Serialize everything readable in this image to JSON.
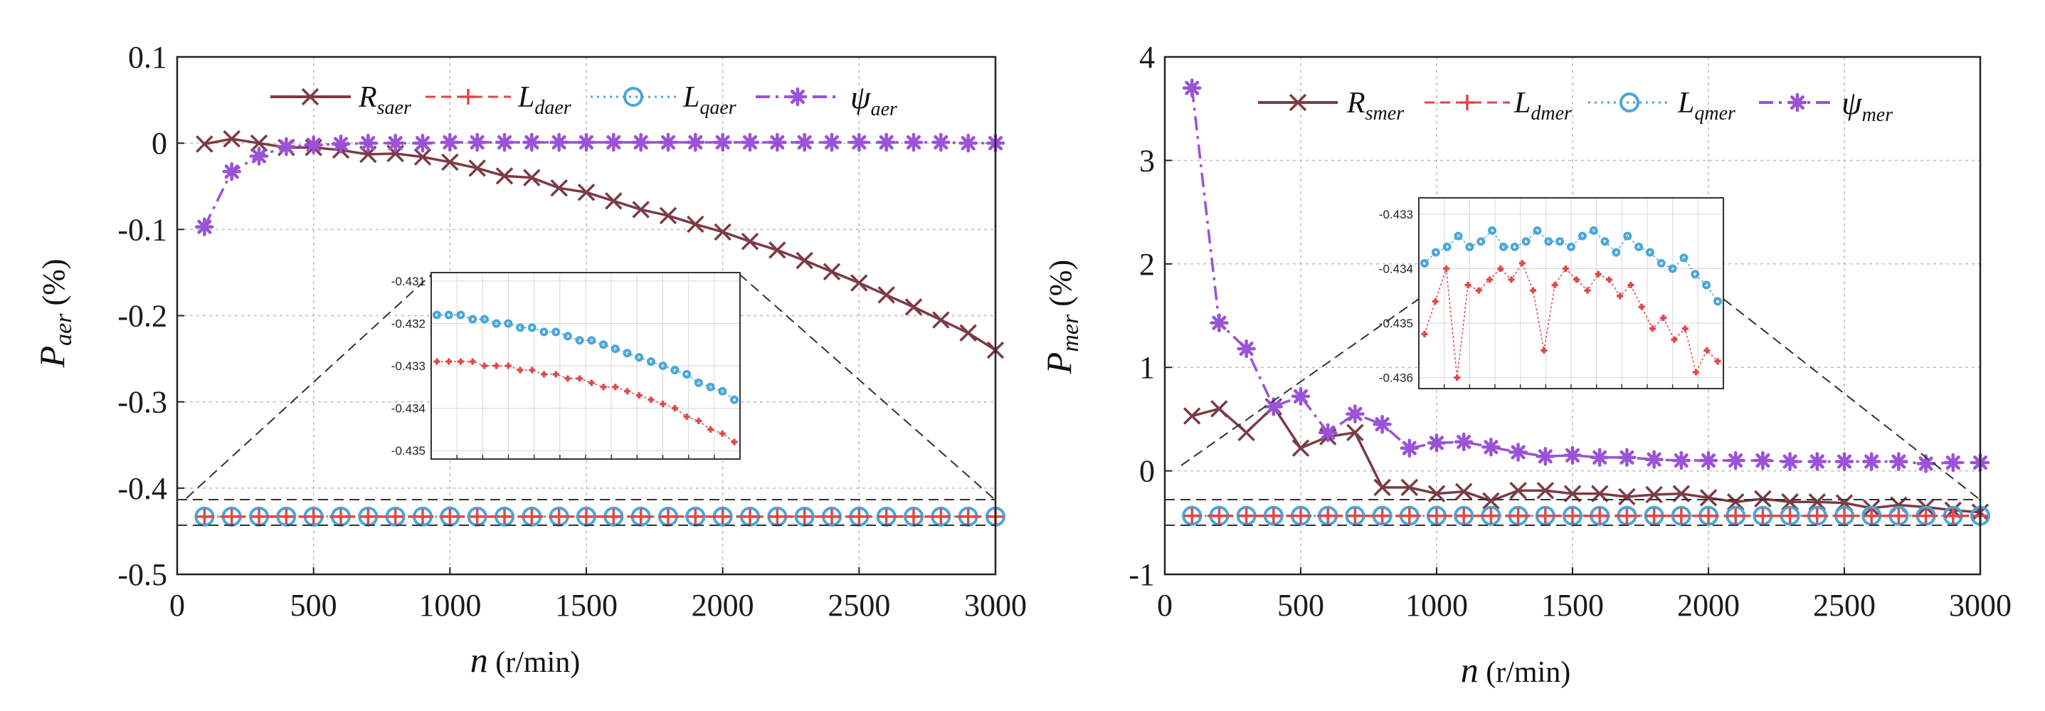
{
  "chart_data": [
    {
      "type": "line",
      "panel": "left",
      "xlabel_var": "n",
      "xlabel_unit": " (r/min)",
      "ylabel_var": "P",
      "ylabel_sub": "aer",
      "ylabel_unit": " (%)",
      "xlim": [
        0,
        3000
      ],
      "ylim": [
        -0.5,
        0.1
      ],
      "x_ticks": [
        0,
        500,
        1000,
        1500,
        2000,
        2500,
        3000
      ],
      "y_ticks": [
        0.1,
        0,
        -0.1,
        -0.2,
        -0.3,
        -0.4,
        -0.5
      ],
      "x_tick_labels": [
        "0",
        "500",
        "1000",
        "1500",
        "2000",
        "2500",
        "3000"
      ],
      "y_tick_labels": [
        "0.1",
        "0",
        "-0.1",
        "-0.2",
        "-0.3",
        "-0.4",
        "-0.5"
      ],
      "grid": true,
      "legend_position": "top",
      "x": [
        100,
        200,
        300,
        400,
        500,
        600,
        700,
        800,
        900,
        1000,
        1100,
        1200,
        1300,
        1400,
        1500,
        1600,
        1700,
        1800,
        1900,
        2000,
        2100,
        2200,
        2300,
        2400,
        2500,
        2600,
        2700,
        2800,
        2900,
        3000
      ],
      "series": [
        {
          "name": "R_saer",
          "label_main": "R",
          "label_sub": "saer",
          "color": "#7b3b45",
          "marker": "x",
          "dash": "solid",
          "values": [
            -0.001,
            0.005,
            0.0,
            -0.005,
            -0.005,
            -0.008,
            -0.013,
            -0.012,
            -0.016,
            -0.022,
            -0.029,
            -0.038,
            -0.04,
            -0.052,
            -0.057,
            -0.067,
            -0.077,
            -0.084,
            -0.094,
            -0.103,
            -0.114,
            -0.124,
            -0.136,
            -0.149,
            -0.162,
            -0.176,
            -0.19,
            -0.205,
            -0.22,
            -0.24
          ]
        },
        {
          "name": "L_daer",
          "label_main": "L",
          "label_sub": "daer",
          "color": "#e04848",
          "marker": "plus",
          "dash": "dashed",
          "values": [
            -0.433,
            -0.433,
            -0.433,
            -0.433,
            -0.433,
            -0.433,
            -0.433,
            -0.433,
            -0.433,
            -0.433,
            -0.433,
            -0.433,
            -0.433,
            -0.433,
            -0.433,
            -0.433,
            -0.433,
            -0.433,
            -0.433,
            -0.433,
            -0.433,
            -0.433,
            -0.433,
            -0.433,
            -0.433,
            -0.433,
            -0.433,
            -0.433,
            -0.433,
            -0.433
          ]
        },
        {
          "name": "L_qaer",
          "label_main": "L",
          "label_sub": "qaer",
          "color": "#4aa6d8",
          "marker": "circle",
          "dash": "dotted",
          "values": [
            -0.433,
            -0.433,
            -0.433,
            -0.433,
            -0.433,
            -0.433,
            -0.433,
            -0.433,
            -0.433,
            -0.433,
            -0.433,
            -0.433,
            -0.433,
            -0.433,
            -0.433,
            -0.433,
            -0.433,
            -0.433,
            -0.433,
            -0.433,
            -0.433,
            -0.433,
            -0.433,
            -0.433,
            -0.433,
            -0.433,
            -0.433,
            -0.433,
            -0.433,
            -0.433
          ]
        },
        {
          "name": "psi_aer",
          "label_main": "ψ",
          "label_sub": "aer",
          "color": "#9a52d6",
          "marker": "star",
          "dash": "dashdot",
          "values": [
            -0.097,
            -0.033,
            -0.015,
            -0.004,
            -0.002,
            -0.001,
            0.0,
            0.0,
            0.0,
            0.001,
            0.001,
            0.001,
            0.001,
            0.001,
            0.001,
            0.001,
            0.001,
            0.001,
            0.001,
            0.001,
            0.001,
            0.001,
            0.001,
            0.001,
            0.001,
            0.001,
            0.001,
            0.001,
            0.0,
            0.0
          ]
        }
      ],
      "inset": {
        "y_ticks": [
          -0.431,
          -0.432,
          -0.433,
          -0.434,
          -0.435
        ],
        "y_tick_labels": [
          "-0.431",
          "-0.432",
          "-0.433",
          "-0.434",
          "-0.435"
        ],
        "ylim": [
          -0.4352,
          -0.4308
        ],
        "series": [
          {
            "name": "L_qaer",
            "color": "#4aa6d8",
            "marker": "circle",
            "values": [
              -0.4318,
              -0.4318,
              -0.4318,
              -0.4319,
              -0.4319,
              -0.432,
              -0.432,
              -0.4321,
              -0.4321,
              -0.4322,
              -0.4322,
              -0.4323,
              -0.4324,
              -0.4324,
              -0.4325,
              -0.4326,
              -0.4327,
              -0.4328,
              -0.4329,
              -0.433,
              -0.4331,
              -0.4332,
              -0.4334,
              -0.4335,
              -0.4336,
              -0.4338
            ]
          },
          {
            "name": "L_daer",
            "color": "#e04848",
            "marker": "plus",
            "values": [
              -0.4329,
              -0.4329,
              -0.4329,
              -0.4329,
              -0.433,
              -0.433,
              -0.433,
              -0.4331,
              -0.4331,
              -0.4332,
              -0.4332,
              -0.4333,
              -0.4333,
              -0.4334,
              -0.4335,
              -0.4335,
              -0.4336,
              -0.4337,
              -0.4338,
              -0.4339,
              -0.434,
              -0.4342,
              -0.4343,
              -0.4345,
              -0.4346,
              -0.4348
            ]
          }
        ]
      }
    },
    {
      "type": "line",
      "panel": "right",
      "xlabel_var": "n",
      "xlabel_unit": " (r/min)",
      "ylabel_var": "P",
      "ylabel_sub": "mer",
      "ylabel_unit": " (%)",
      "xlim": [
        0,
        3000
      ],
      "ylim": [
        -1,
        4
      ],
      "x_ticks": [
        0,
        500,
        1000,
        1500,
        2000,
        2500,
        3000
      ],
      "y_ticks": [
        4,
        3,
        2,
        1,
        0,
        -1
      ],
      "x_tick_labels": [
        "0",
        "500",
        "1000",
        "1500",
        "2000",
        "2500",
        "3000"
      ],
      "y_tick_labels": [
        "4",
        "3",
        "2",
        "1",
        "0",
        "-1"
      ],
      "grid": true,
      "legend_position": "top",
      "x": [
        100,
        200,
        300,
        400,
        500,
        600,
        700,
        800,
        900,
        1000,
        1100,
        1200,
        1300,
        1400,
        1500,
        1600,
        1700,
        1800,
        1900,
        2000,
        2100,
        2200,
        2300,
        2400,
        2500,
        2600,
        2700,
        2800,
        2900,
        3000
      ],
      "series": [
        {
          "name": "R_smer",
          "label_main": "R",
          "label_sub": "smer",
          "color": "#7b3b45",
          "marker": "x",
          "dash": "solid",
          "values": [
            0.53,
            0.6,
            0.37,
            0.62,
            0.22,
            0.33,
            0.37,
            -0.16,
            -0.16,
            -0.22,
            -0.2,
            -0.29,
            -0.19,
            -0.19,
            -0.22,
            -0.22,
            -0.25,
            -0.23,
            -0.22,
            -0.26,
            -0.3,
            -0.27,
            -0.3,
            -0.3,
            -0.31,
            -0.36,
            -0.33,
            -0.35,
            -0.38,
            -0.4
          ]
        },
        {
          "name": "L_dmer",
          "label_main": "L",
          "label_sub": "dmer",
          "color": "#e04848",
          "marker": "plus",
          "dash": "dashed",
          "values": [
            -0.435,
            -0.435,
            -0.435,
            -0.435,
            -0.435,
            -0.435,
            -0.435,
            -0.435,
            -0.435,
            -0.435,
            -0.435,
            -0.435,
            -0.435,
            -0.435,
            -0.435,
            -0.435,
            -0.435,
            -0.435,
            -0.435,
            -0.435,
            -0.435,
            -0.435,
            -0.435,
            -0.435,
            -0.435,
            -0.435,
            -0.435,
            -0.435,
            -0.435,
            -0.435
          ]
        },
        {
          "name": "L_qmer",
          "label_main": "L",
          "label_sub": "qmer",
          "color": "#4aa6d8",
          "marker": "circle",
          "dash": "dotted",
          "values": [
            -0.434,
            -0.434,
            -0.434,
            -0.434,
            -0.434,
            -0.434,
            -0.434,
            -0.434,
            -0.434,
            -0.434,
            -0.434,
            -0.434,
            -0.434,
            -0.434,
            -0.434,
            -0.434,
            -0.434,
            -0.434,
            -0.434,
            -0.434,
            -0.434,
            -0.434,
            -0.434,
            -0.434,
            -0.434,
            -0.434,
            -0.434,
            -0.434,
            -0.434,
            -0.434
          ]
        },
        {
          "name": "psi_mer",
          "label_main": "ψ",
          "label_sub": "mer",
          "color": "#9a52d6",
          "marker": "star",
          "dash": "dashdot",
          "values": [
            3.7,
            1.43,
            1.18,
            0.62,
            0.72,
            0.37,
            0.55,
            0.45,
            0.22,
            0.27,
            0.28,
            0.23,
            0.18,
            0.14,
            0.15,
            0.13,
            0.13,
            0.11,
            0.1,
            0.1,
            0.1,
            0.1,
            0.09,
            0.09,
            0.09,
            0.09,
            0.09,
            0.07,
            0.08,
            0.08
          ]
        }
      ],
      "inset": {
        "y_ticks": [
          -0.433,
          -0.434,
          -0.435,
          -0.436
        ],
        "y_tick_labels": [
          "-0.433",
          "-0.434",
          "-0.435",
          "-0.436"
        ],
        "ylim": [
          -0.4362,
          -0.4327
        ],
        "series": [
          {
            "name": "L_qmer",
            "color": "#4aa6d8",
            "marker": "circle",
            "values": [
              -0.4339,
              -0.4337,
              -0.4336,
              -0.4334,
              -0.4336,
              -0.4335,
              -0.4333,
              -0.4336,
              -0.4336,
              -0.4335,
              -0.4333,
              -0.4335,
              -0.4335,
              -0.4336,
              -0.4334,
              -0.4333,
              -0.4335,
              -0.4337,
              -0.4334,
              -0.4336,
              -0.4337,
              -0.4339,
              -0.434,
              -0.4338,
              -0.4341,
              -0.4343,
              -0.4346
            ]
          },
          {
            "name": "L_dmer",
            "color": "#e04848",
            "marker": "plus",
            "values": [
              -0.4352,
              -0.4346,
              -0.434,
              -0.436,
              -0.4343,
              -0.4344,
              -0.4342,
              -0.434,
              -0.4342,
              -0.4339,
              -0.4344,
              -0.4355,
              -0.4343,
              -0.434,
              -0.4342,
              -0.4344,
              -0.4341,
              -0.4342,
              -0.4345,
              -0.4343,
              -0.4347,
              -0.4351,
              -0.4349,
              -0.4353,
              -0.4351,
              -0.4359,
              -0.4355,
              -0.4357
            ]
          }
        ]
      }
    }
  ]
}
